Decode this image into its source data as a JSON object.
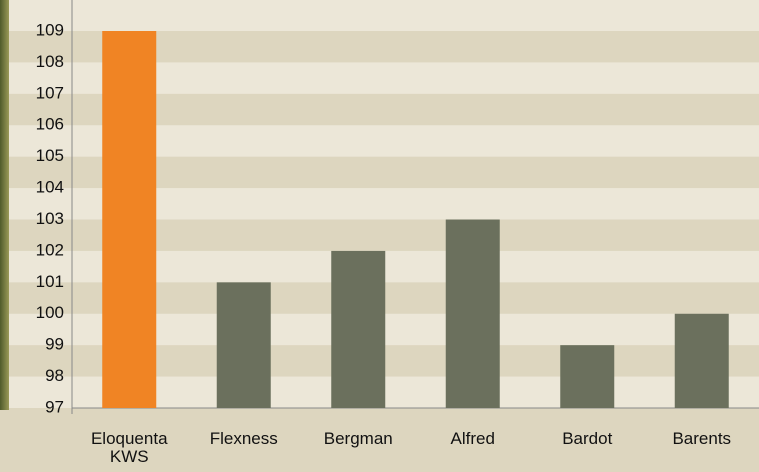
{
  "chart_data": {
    "type": "bar",
    "categories": [
      "Eloquenta KWS",
      "Flexness",
      "Bergman",
      "Alfred",
      "Bardot",
      "Barents"
    ],
    "values": [
      109,
      101,
      102,
      103,
      99,
      100
    ],
    "colors": [
      "#f08424",
      "#6b705d",
      "#6b705d",
      "#6b705d",
      "#6b705d",
      "#6b705d"
    ],
    "ylim": [
      97,
      109
    ],
    "yticks": [
      97,
      98,
      99,
      100,
      101,
      102,
      103,
      104,
      105,
      106,
      107,
      108,
      109
    ],
    "grid": "bands"
  }
}
